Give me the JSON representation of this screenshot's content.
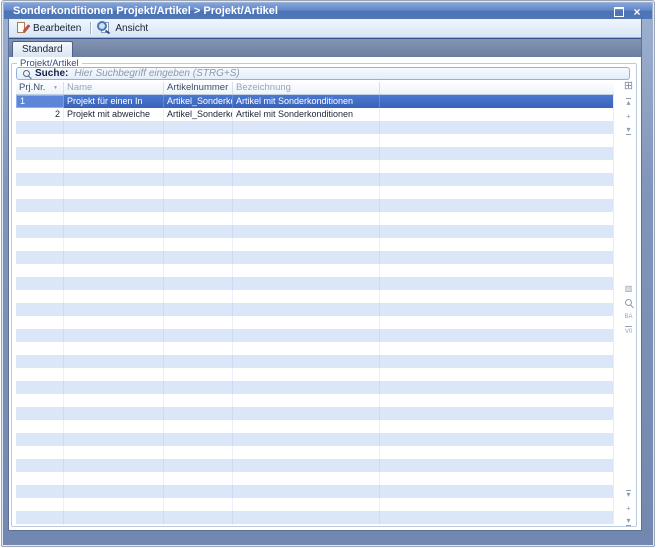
{
  "window": {
    "title": "Sonderkonditionen Projekt/Artikel > Projekt/Artikel"
  },
  "icons": {
    "close": "×",
    "sort_desc": "▼",
    "column_chooser": "⊞",
    "jump_top": "▴",
    "insert_plus": "+",
    "jump_down": "▾",
    "panel": "▥",
    "letters_ba": "BA",
    "letters_v0": "V0",
    "mark_down_1": "▾",
    "plus_bottom": "+",
    "mark_down_2": "▾"
  },
  "toolbar": {
    "edit_label": "Bearbeiten",
    "view_label": "Ansicht"
  },
  "tabs": {
    "standard_label": "Standard"
  },
  "group_label": "Projekt/Artikel",
  "search": {
    "label": "Suche:",
    "placeholder": "Hier Suchbegriff eingeben (STRG+S)"
  },
  "table": {
    "columns": [
      {
        "label": "Prj.Nr."
      },
      {
        "label": "Name"
      },
      {
        "label": "Artikelnummer"
      },
      {
        "label": "Bezeichnung"
      },
      {
        "label": ""
      }
    ],
    "rows": [
      {
        "prj_nr": "1",
        "name": "Projekt für einen In",
        "artikelnummer": "Artikel_Sonderkonditio",
        "bezeichnung": "Artikel mit Sonderkonditionen",
        "selected": true
      },
      {
        "prj_nr": "2",
        "name": "Projekt mit abweiche",
        "artikelnummer": "Artikel_Sonderkonditio",
        "bezeichnung": "Artikel mit Sonderkonditionen",
        "selected": false
      }
    ],
    "empty_row_count": 32
  },
  "colors": {
    "titlebar_blue": "#4f77b8",
    "frame_blue": "#7e93b8",
    "selection_blue": "#3f6ac4",
    "stripe_blue": "#dbe7f8",
    "tab_face": "#d9e4f1"
  }
}
